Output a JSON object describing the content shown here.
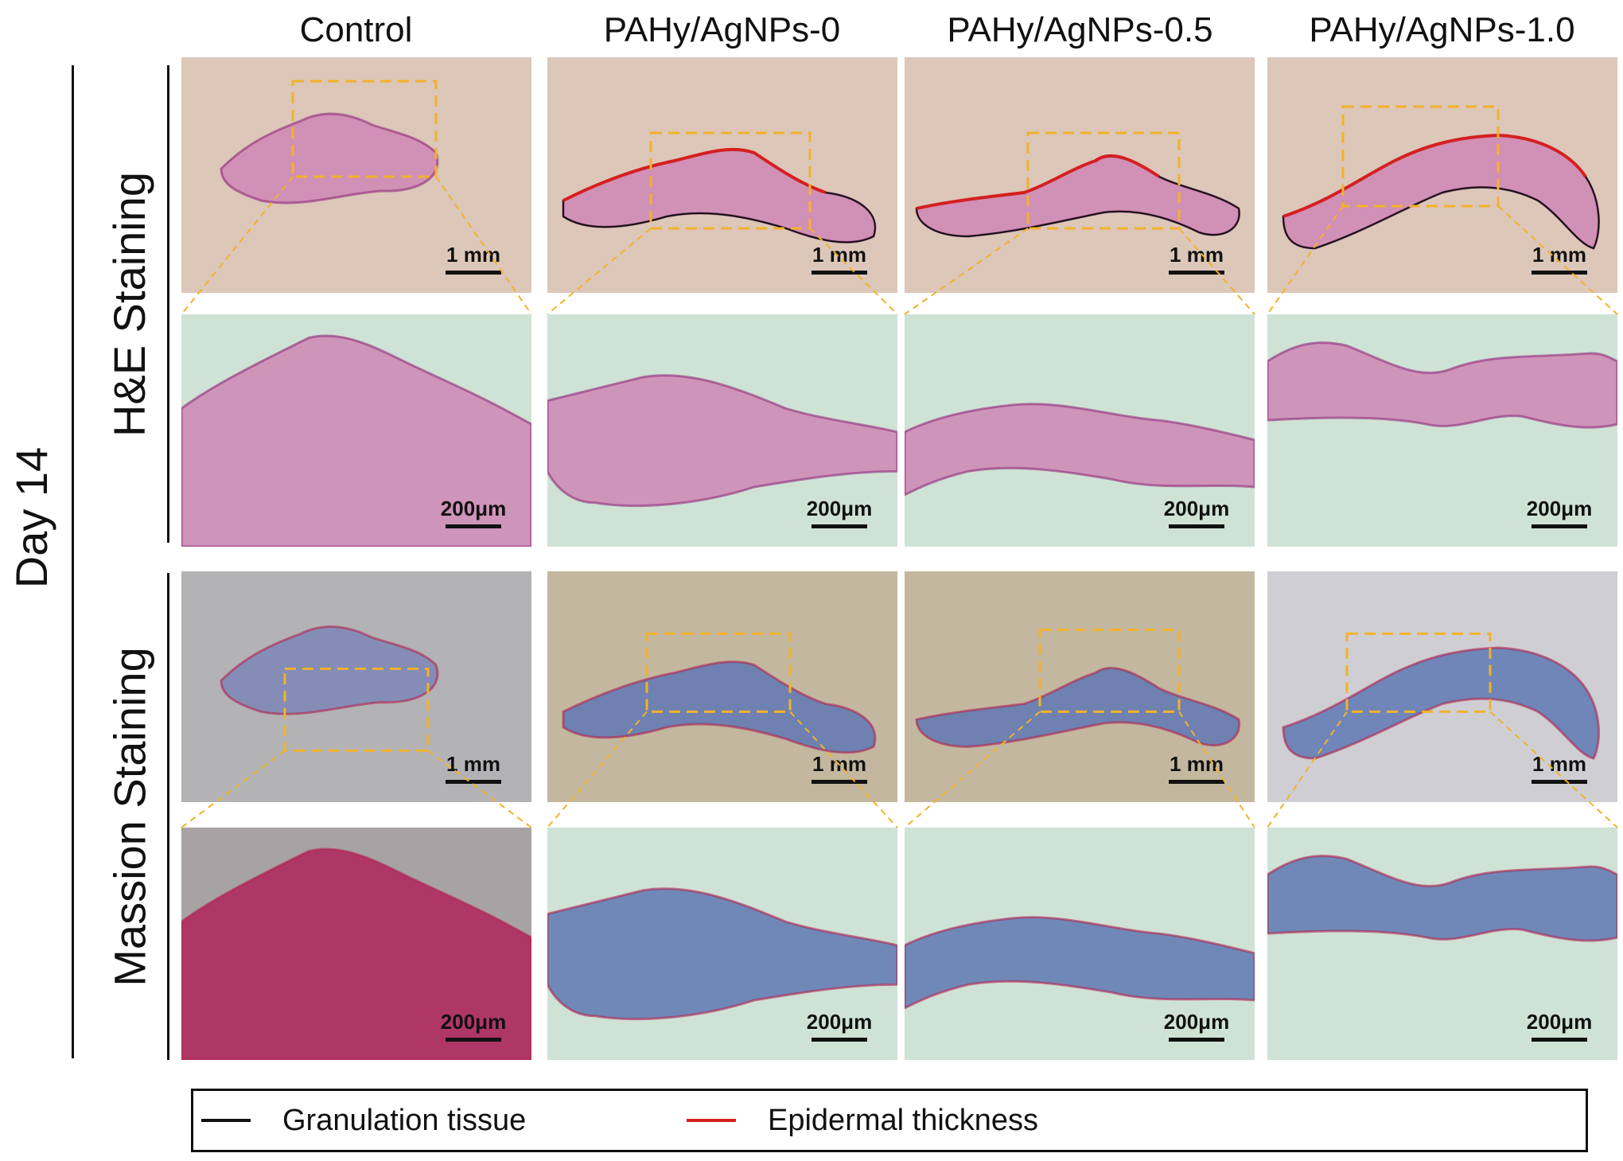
{
  "columns": [
    "Control",
    "PAHy/AgNPs-0",
    "PAHy/AgNPs-0.5",
    "PAHy/AgNPs-1.0"
  ],
  "timepoint": "Day 14",
  "rows": {
    "he": "H&E Staining",
    "masson": "Massion Staining"
  },
  "scale_bars": {
    "overview": "1 mm",
    "zoom": "200μm"
  },
  "legend": {
    "items": [
      {
        "label": "Granulation tissue",
        "color": "#111111"
      },
      {
        "label": "Epidermal thickness",
        "color": "#d42020"
      }
    ]
  },
  "colors": {
    "he_background": "#dcc7b9",
    "he_zoom_background": "#cfe2d6",
    "masson_background": "#b3b2b5",
    "masson_zoom_background": "#cfe2d6",
    "he_tissue": "#cf86b4",
    "masson_tissue": "#5f78b3",
    "selection_box": "#f2b22a"
  }
}
